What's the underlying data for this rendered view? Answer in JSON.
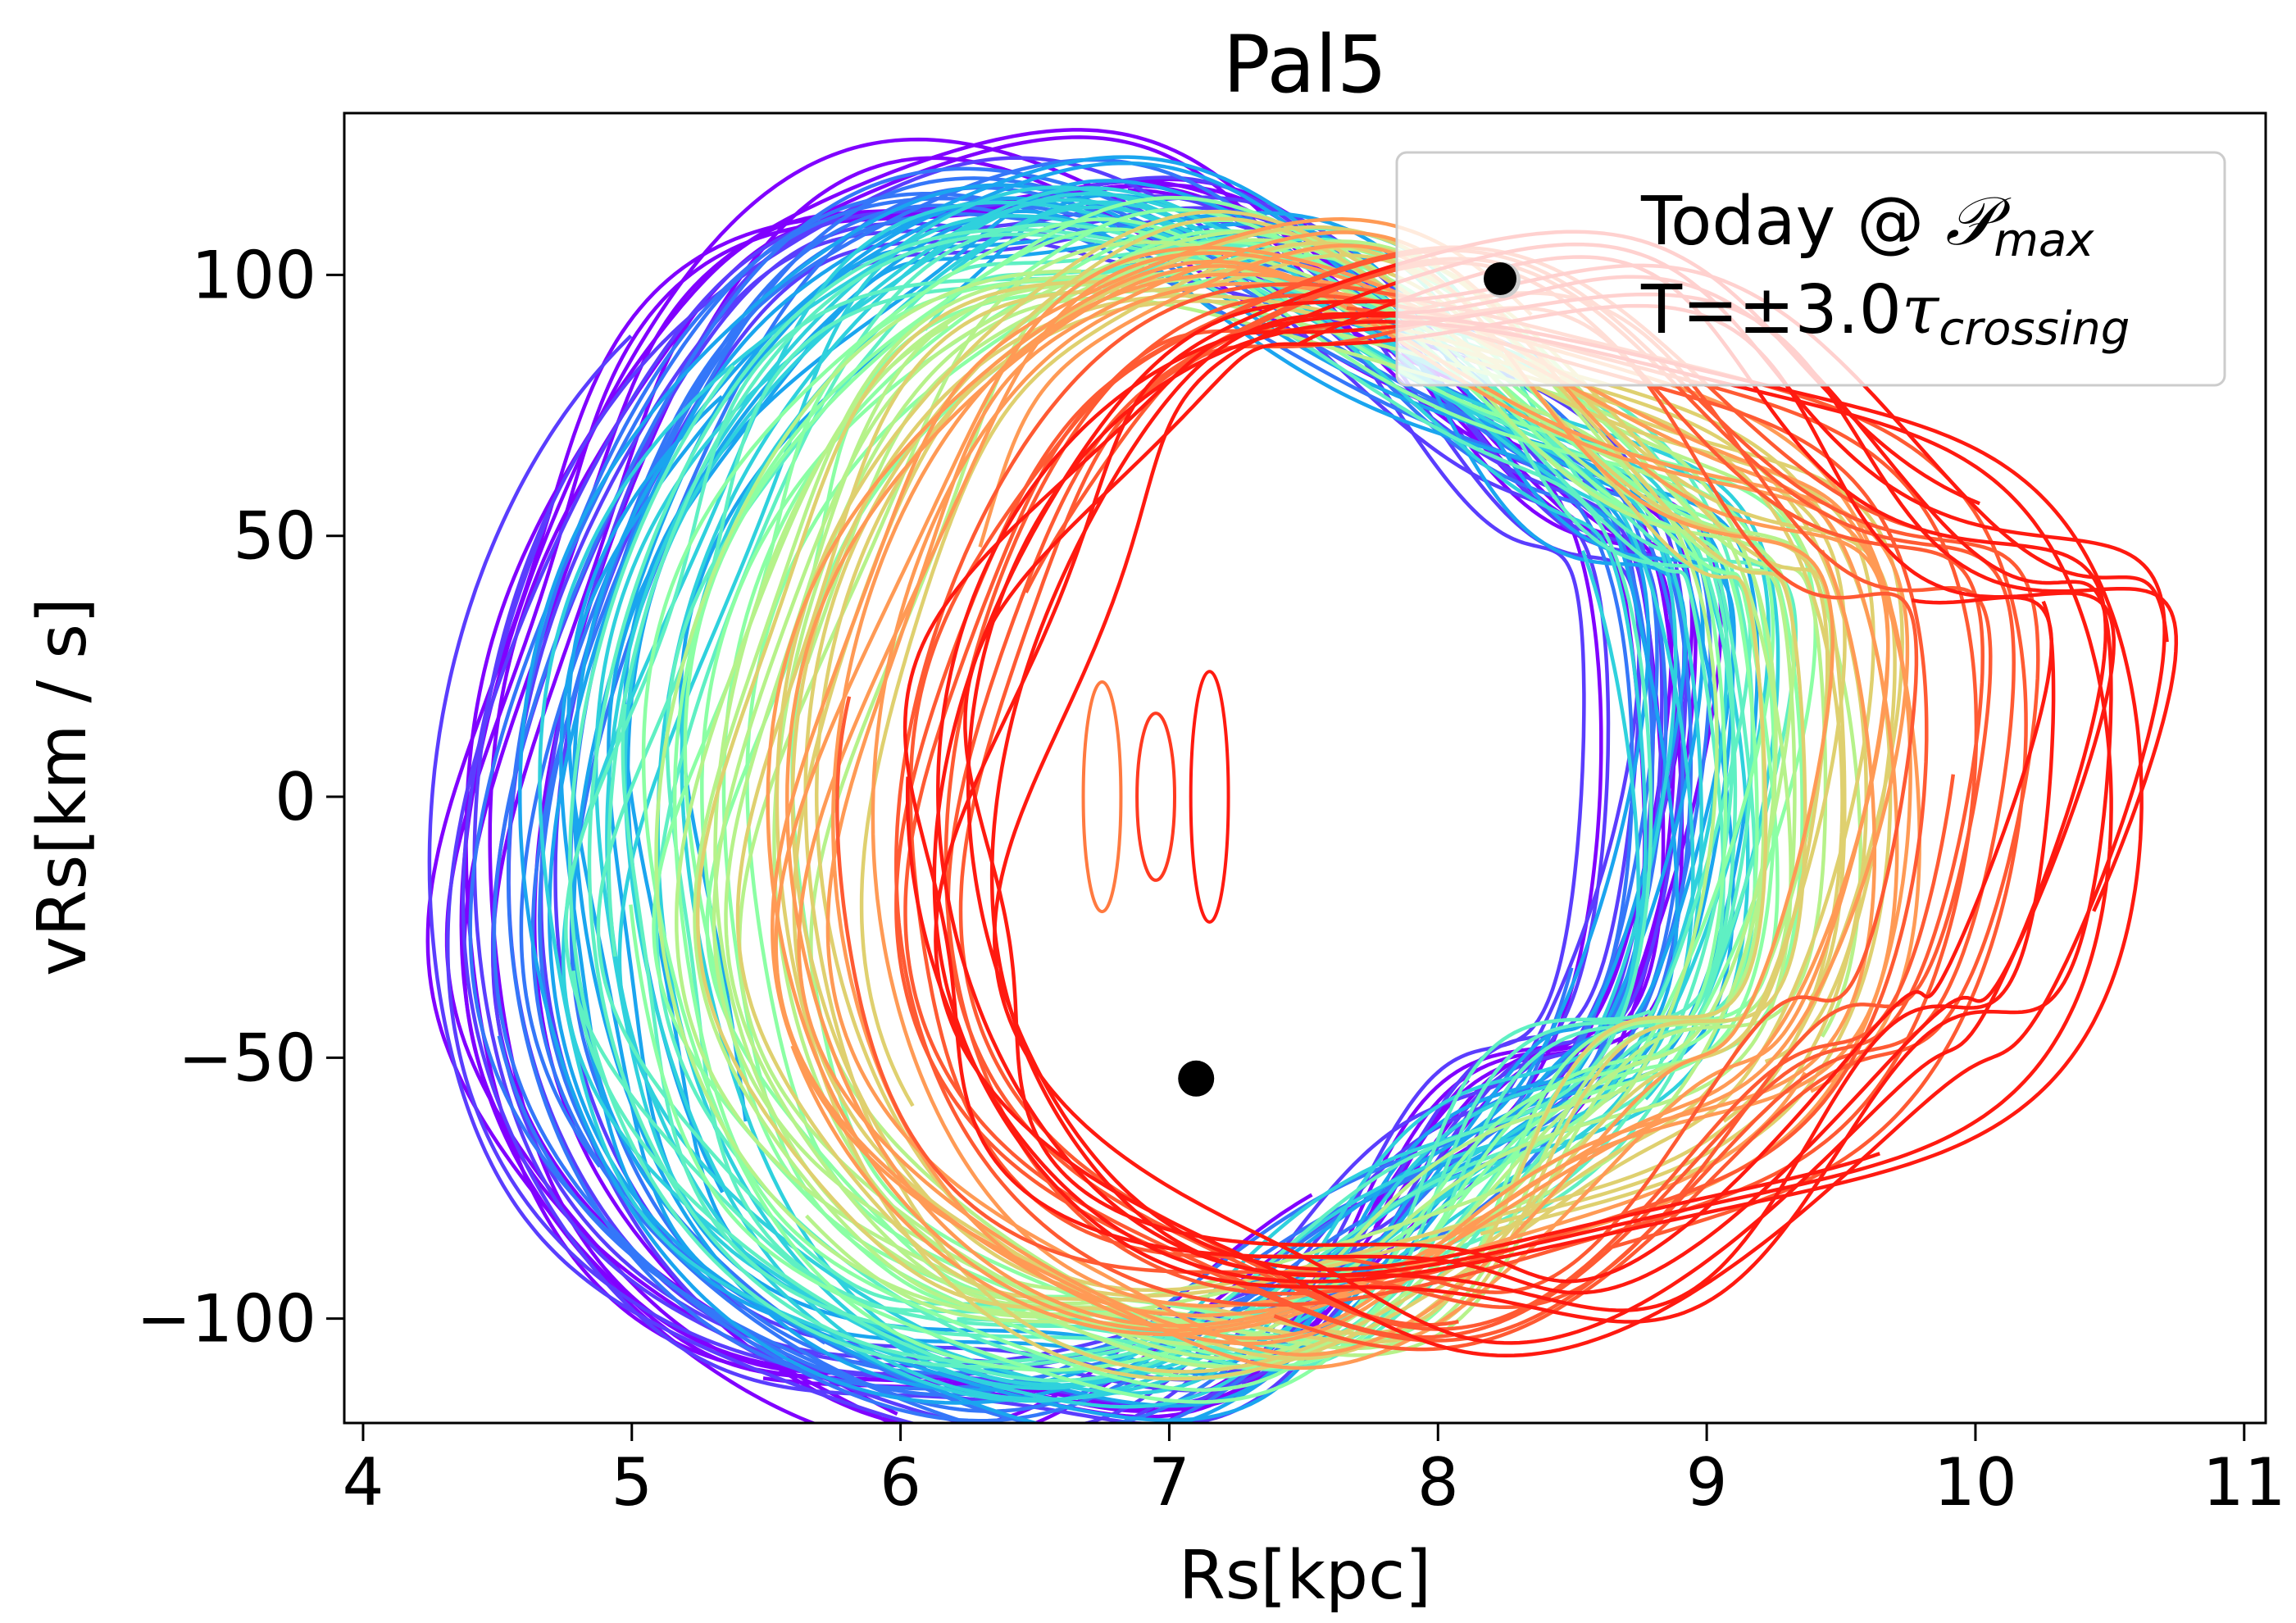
{
  "chart_data": {
    "type": "line",
    "title": "Pal5",
    "xlabel": "Rs[kpc]",
    "ylabel": "vRs[km / s]",
    "xlim": [
      3.93,
      11.08
    ],
    "ylim": [
      -120,
      131
    ],
    "xticks": [
      4,
      5,
      6,
      7,
      8,
      9,
      10,
      11
    ],
    "xtick_labels": [
      "4",
      "5",
      "6",
      "7",
      "8",
      "9",
      "10",
      "11"
    ],
    "yticks": [
      -100,
      -50,
      0,
      50,
      100
    ],
    "ytick_labels": [
      "−100",
      "−50",
      "0",
      "50",
      "100"
    ],
    "grid": false,
    "colormap": "rainbow",
    "colors": [
      "#8000ff",
      "#5a3dfe",
      "#3477f9",
      "#1aa5ef",
      "#2fd1dd",
      "#5ff0c3",
      "#8bffa4",
      "#b6f28a",
      "#dfd06f",
      "#ff9a55",
      "#ff5a33",
      "#ff1a10"
    ],
    "series": [
      {
        "rmin": 4.26,
        "rmax": 8.9,
        "vmax": 119,
        "peak_r": 6.2
      },
      {
        "rmin": 4.38,
        "rmax": 8.98,
        "vmax": 115,
        "peak_r": 6.3
      },
      {
        "rmin": 4.5,
        "rmax": 9.05,
        "vmax": 113,
        "peak_r": 6.5
      },
      {
        "rmin": 4.62,
        "rmax": 9.12,
        "vmax": 112,
        "peak_r": 6.7
      },
      {
        "rmin": 4.75,
        "rmax": 9.2,
        "vmax": 110,
        "peak_r": 6.9
      },
      {
        "rmin": 4.9,
        "rmax": 9.28,
        "vmax": 108,
        "peak_r": 7.1
      },
      {
        "rmin": 5.05,
        "rmax": 9.38,
        "vmax": 106,
        "peak_r": 7.3
      },
      {
        "rmin": 5.22,
        "rmax": 9.5,
        "vmax": 104,
        "peak_r": 7.5
      },
      {
        "rmin": 5.4,
        "rmax": 9.62,
        "vmax": 102,
        "peak_r": 7.7
      },
      {
        "rmin": 5.6,
        "rmax": 9.8,
        "vmax": 100,
        "peak_r": 7.9
      },
      {
        "rmin": 5.85,
        "rmax": 10.2,
        "vmax": 99,
        "peak_r": 8.1
      },
      {
        "rmin": 6.1,
        "rmax": 10.72,
        "vmax": 98,
        "peak_r": 8.3
      }
    ],
    "markers": [
      {
        "x": 7.1,
        "y": -54
      },
      {
        "x": 8.24,
        "y": 99
      }
    ],
    "legend": {
      "position": "upper right",
      "line1_text": "Today @ ",
      "line1_math": "𝒫",
      "line1_sub": "max",
      "line2_text": "T=±3.0",
      "line2_math": "τ",
      "line2_sub": "crossing"
    }
  }
}
